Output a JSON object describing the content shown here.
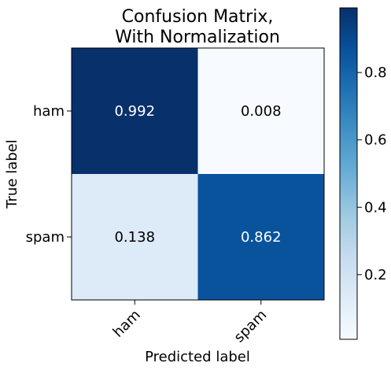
{
  "chart_data": {
    "type": "heatmap",
    "title_lines": [
      "Confusion Matrix,",
      "With Normalization"
    ],
    "xlabel": "Predicted label",
    "ylabel": "True label",
    "x_categories": [
      "ham",
      "spam"
    ],
    "y_categories": [
      "ham",
      "spam"
    ],
    "values": [
      [
        0.992,
        0.008
      ],
      [
        0.138,
        0.862
      ]
    ],
    "value_labels": [
      [
        "0.992",
        "0.008"
      ],
      [
        "0.138",
        "0.862"
      ]
    ],
    "colormap": "Blues",
    "colorbar": {
      "range": [
        0.008,
        0.992
      ],
      "ticks": [
        0.2,
        0.4,
        0.6,
        0.8
      ],
      "tick_labels": [
        "0.2",
        "0.4",
        "0.6",
        "0.8"
      ]
    },
    "text_colors": {
      "light": "#ffffff",
      "dark": "#000000"
    }
  }
}
